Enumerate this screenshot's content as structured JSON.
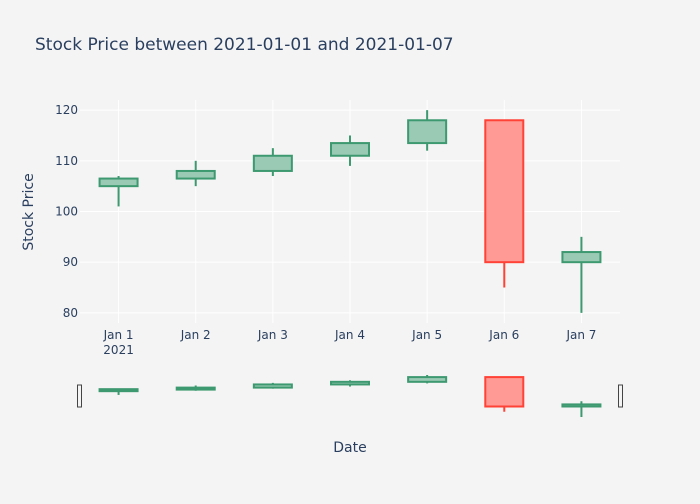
{
  "chart_data": {
    "type": "candlestick",
    "title": "Stock Price between 2021-01-01 and 2021-01-07",
    "xlabel": "Date",
    "ylabel": "Stock Price",
    "categories": [
      "Jan 1",
      "Jan 2",
      "Jan 3",
      "Jan 4",
      "Jan 5",
      "Jan 6",
      "Jan 7"
    ],
    "year_label": "2021",
    "ylim": [
      78,
      122
    ],
    "yticks": [
      80,
      90,
      100,
      110,
      120
    ],
    "grid": true,
    "legend": "none",
    "range_slider": true,
    "colors": {
      "increasing_line": "#3d9970",
      "increasing_fill": "#9ac9b4",
      "decreasing_line": "#ff4136",
      "decreasing_fill": "#ff9a95",
      "background": "#f4f4f4",
      "grid": "#ffffff",
      "text": "#2a3f5f"
    },
    "ohlc": [
      {
        "date": "Jan 1",
        "open": 105,
        "high": 107,
        "low": 101,
        "close": 106.5
      },
      {
        "date": "Jan 2",
        "open": 106.5,
        "high": 110,
        "low": 105,
        "close": 108
      },
      {
        "date": "Jan 3",
        "open": 108,
        "high": 112.5,
        "low": 107,
        "close": 111
      },
      {
        "date": "Jan 4",
        "open": 111,
        "high": 115,
        "low": 109,
        "close": 113.5
      },
      {
        "date": "Jan 5",
        "open": 113.5,
        "high": 120,
        "low": 112,
        "close": 118
      },
      {
        "date": "Jan 6",
        "open": 118,
        "high": 118,
        "low": 85,
        "close": 90
      },
      {
        "date": "Jan 7",
        "open": 90,
        "high": 95,
        "low": 80,
        "close": 92
      }
    ]
  }
}
